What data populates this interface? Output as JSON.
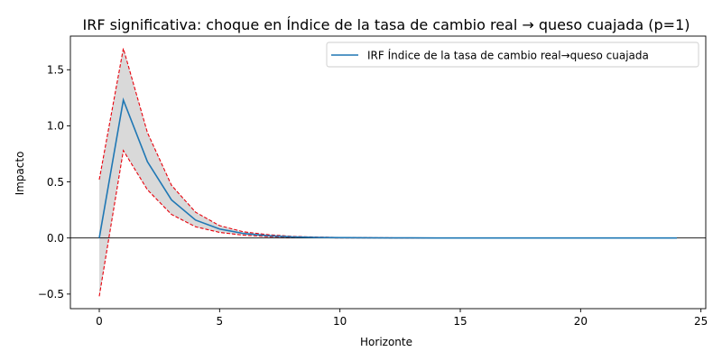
{
  "chart_data": {
    "type": "line",
    "title": "IRF significativa: choque en Índice de la tasa de cambio real → queso cuajada (p=1)",
    "xlabel": "Horizonte",
    "ylabel": "Impacto",
    "xlim": [
      -1.2,
      25.2
    ],
    "ylim": [
      -0.63,
      1.8
    ],
    "xticks": [
      0,
      5,
      10,
      15,
      20,
      25
    ],
    "xtick_labels": [
      "0",
      "5",
      "10",
      "15",
      "20",
      "25"
    ],
    "yticks": [
      -0.5,
      0.0,
      0.5,
      1.0,
      1.5
    ],
    "ytick_labels": [
      "−0.5",
      "0.0",
      "0.5",
      "1.0",
      "1.5"
    ],
    "grid": false,
    "legend_position": "top-right",
    "zero_line": true,
    "x": [
      0,
      1,
      2,
      3,
      4,
      5,
      6,
      7,
      8,
      9,
      10,
      11,
      12,
      13,
      14,
      15,
      16,
      17,
      18,
      19,
      20,
      21,
      22,
      23,
      24
    ],
    "series": [
      {
        "name": "IRF Índice de la tasa de cambio real→queso cuajada",
        "color": "#1f77b4",
        "values": [
          0.0,
          1.23,
          0.68,
          0.34,
          0.16,
          0.08,
          0.04,
          0.02,
          0.01,
          0.005,
          0.003,
          0.002,
          0.001,
          0.001,
          0.0005,
          0.0003,
          0.0002,
          0.0001,
          0.0001,
          0.0,
          0.0,
          0.0,
          0.0,
          0.0,
          0.0
        ]
      }
    ],
    "band": {
      "fill_color": "#d9d9d9",
      "edge_color": "#e8000b",
      "upper": [
        0.52,
        1.69,
        0.94,
        0.47,
        0.23,
        0.11,
        0.055,
        0.03,
        0.015,
        0.008,
        0.005,
        0.003,
        0.002,
        0.001,
        0.001,
        0.0005,
        0.0003,
        0.0002,
        0.0001,
        0.0,
        0.0,
        0.0,
        0.0,
        0.0,
        0.0
      ],
      "lower": [
        -0.52,
        0.78,
        0.43,
        0.21,
        0.1,
        0.05,
        0.025,
        0.012,
        0.006,
        0.003,
        0.001,
        0.001,
        0.0005,
        0.0003,
        0.0002,
        0.0001,
        0.0,
        0.0,
        0.0,
        0.0,
        0.0,
        0.0,
        0.0,
        0.0,
        0.0
      ]
    }
  }
}
